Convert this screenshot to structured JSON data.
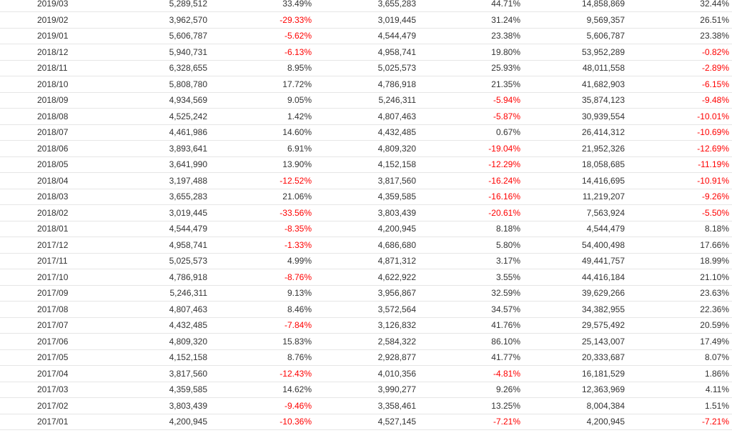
{
  "rows": [
    {
      "month": "2019/03",
      "c1": "5,289,512",
      "c2": "33.49%",
      "c3": "3,655,283",
      "c4": "44.71%",
      "c5": "14,858,869",
      "c6": "32.44%"
    },
    {
      "month": "2019/02",
      "c1": "3,962,570",
      "c2": "-29.33%",
      "c3": "3,019,445",
      "c4": "31.24%",
      "c5": "9,569,357",
      "c6": "26.51%"
    },
    {
      "month": "2019/01",
      "c1": "5,606,787",
      "c2": "-5.62%",
      "c3": "4,544,479",
      "c4": "23.38%",
      "c5": "5,606,787",
      "c6": "23.38%"
    },
    {
      "month": "2018/12",
      "c1": "5,940,731",
      "c2": "-6.13%",
      "c3": "4,958,741",
      "c4": "19.80%",
      "c5": "53,952,289",
      "c6": "-0.82%"
    },
    {
      "month": "2018/11",
      "c1": "6,328,655",
      "c2": "8.95%",
      "c3": "5,025,573",
      "c4": "25.93%",
      "c5": "48,011,558",
      "c6": "-2.89%"
    },
    {
      "month": "2018/10",
      "c1": "5,808,780",
      "c2": "17.72%",
      "c3": "4,786,918",
      "c4": "21.35%",
      "c5": "41,682,903",
      "c6": "-6.15%"
    },
    {
      "month": "2018/09",
      "c1": "4,934,569",
      "c2": "9.05%",
      "c3": "5,246,311",
      "c4": "-5.94%",
      "c5": "35,874,123",
      "c6": "-9.48%"
    },
    {
      "month": "2018/08",
      "c1": "4,525,242",
      "c2": "1.42%",
      "c3": "4,807,463",
      "c4": "-5.87%",
      "c5": "30,939,554",
      "c6": "-10.01%"
    },
    {
      "month": "2018/07",
      "c1": "4,461,986",
      "c2": "14.60%",
      "c3": "4,432,485",
      "c4": "0.67%",
      "c5": "26,414,312",
      "c6": "-10.69%"
    },
    {
      "month": "2018/06",
      "c1": "3,893,641",
      "c2": "6.91%",
      "c3": "4,809,320",
      "c4": "-19.04%",
      "c5": "21,952,326",
      "c6": "-12.69%"
    },
    {
      "month": "2018/05",
      "c1": "3,641,990",
      "c2": "13.90%",
      "c3": "4,152,158",
      "c4": "-12.29%",
      "c5": "18,058,685",
      "c6": "-11.19%"
    },
    {
      "month": "2018/04",
      "c1": "3,197,488",
      "c2": "-12.52%",
      "c3": "3,817,560",
      "c4": "-16.24%",
      "c5": "14,416,695",
      "c6": "-10.91%"
    },
    {
      "month": "2018/03",
      "c1": "3,655,283",
      "c2": "21.06%",
      "c3": "4,359,585",
      "c4": "-16.16%",
      "c5": "11,219,207",
      "c6": "-9.26%"
    },
    {
      "month": "2018/02",
      "c1": "3,019,445",
      "c2": "-33.56%",
      "c3": "3,803,439",
      "c4": "-20.61%",
      "c5": "7,563,924",
      "c6": "-5.50%"
    },
    {
      "month": "2018/01",
      "c1": "4,544,479",
      "c2": "-8.35%",
      "c3": "4,200,945",
      "c4": "8.18%",
      "c5": "4,544,479",
      "c6": "8.18%"
    },
    {
      "month": "2017/12",
      "c1": "4,958,741",
      "c2": "-1.33%",
      "c3": "4,686,680",
      "c4": "5.80%",
      "c5": "54,400,498",
      "c6": "17.66%"
    },
    {
      "month": "2017/11",
      "c1": "5,025,573",
      "c2": "4.99%",
      "c3": "4,871,312",
      "c4": "3.17%",
      "c5": "49,441,757",
      "c6": "18.99%"
    },
    {
      "month": "2017/10",
      "c1": "4,786,918",
      "c2": "-8.76%",
      "c3": "4,622,922",
      "c4": "3.55%",
      "c5": "44,416,184",
      "c6": "21.10%"
    },
    {
      "month": "2017/09",
      "c1": "5,246,311",
      "c2": "9.13%",
      "c3": "3,956,867",
      "c4": "32.59%",
      "c5": "39,629,266",
      "c6": "23.63%"
    },
    {
      "month": "2017/08",
      "c1": "4,807,463",
      "c2": "8.46%",
      "c3": "3,572,564",
      "c4": "34.57%",
      "c5": "34,382,955",
      "c6": "22.36%"
    },
    {
      "month": "2017/07",
      "c1": "4,432,485",
      "c2": "-7.84%",
      "c3": "3,126,832",
      "c4": "41.76%",
      "c5": "29,575,492",
      "c6": "20.59%"
    },
    {
      "month": "2017/06",
      "c1": "4,809,320",
      "c2": "15.83%",
      "c3": "2,584,322",
      "c4": "86.10%",
      "c5": "25,143,007",
      "c6": "17.49%"
    },
    {
      "month": "2017/05",
      "c1": "4,152,158",
      "c2": "8.76%",
      "c3": "2,928,877",
      "c4": "41.77%",
      "c5": "20,333,687",
      "c6": "8.07%"
    },
    {
      "month": "2017/04",
      "c1": "3,817,560",
      "c2": "-12.43%",
      "c3": "4,010,356",
      "c4": "-4.81%",
      "c5": "16,181,529",
      "c6": "1.86%"
    },
    {
      "month": "2017/03",
      "c1": "4,359,585",
      "c2": "14.62%",
      "c3": "3,990,277",
      "c4": "9.26%",
      "c5": "12,363,969",
      "c6": "4.11%"
    },
    {
      "month": "2017/02",
      "c1": "3,803,439",
      "c2": "-9.46%",
      "c3": "3,358,461",
      "c4": "13.25%",
      "c5": "8,004,384",
      "c6": "1.51%"
    },
    {
      "month": "2017/01",
      "c1": "4,200,945",
      "c2": "-10.36%",
      "c3": "4,527,145",
      "c4": "-7.21%",
      "c5": "4,200,945",
      "c6": "-7.21%"
    }
  ],
  "colors": {
    "text": "#333333",
    "negative": "#ff0000",
    "row_border": "#e6e6e6",
    "background": "#ffffff"
  }
}
